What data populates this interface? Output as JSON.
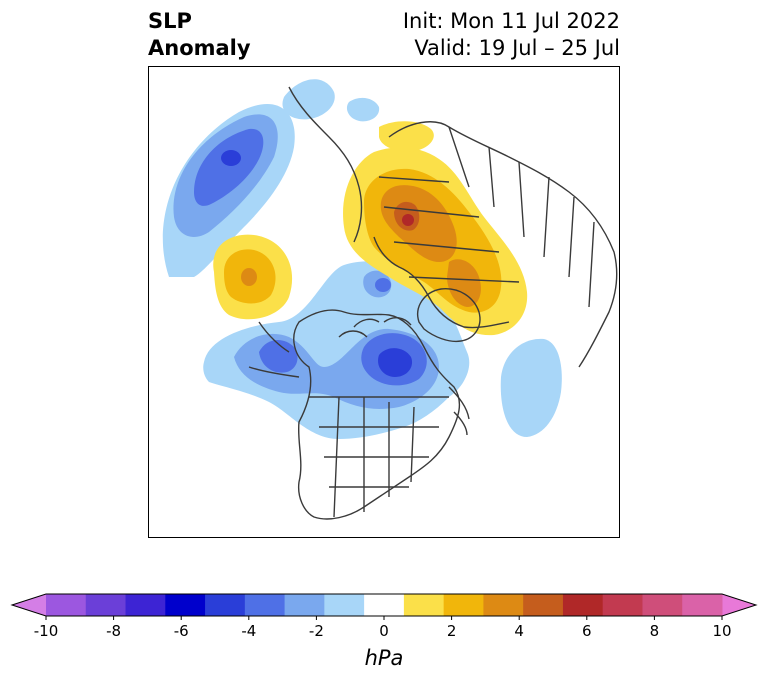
{
  "header": {
    "title_line1": "SLP",
    "title_line2": "Anomaly",
    "init": "Init: Mon 11 Jul 2022",
    "valid": "Valid: 19 Jul – 25 Jul"
  },
  "colorbar": {
    "unit": "hPa",
    "ticks": [
      "-10",
      "-8",
      "-6",
      "-4",
      "-2",
      "0",
      "2",
      "4",
      "6",
      "8",
      "10"
    ],
    "colors": [
      "#d47ee6",
      "#9c57e0",
      "#6b3fd8",
      "#3d24d4",
      "#0000cc",
      "#2a3ed8",
      "#4f70e6",
      "#7aa8ee",
      "#a8d6f8",
      "#ffffff",
      "#fbe049",
      "#f1b60b",
      "#dd8a14",
      "#c55d1d",
      "#b02828",
      "#c23a50",
      "#cf4e7a",
      "#da62a8",
      "#e879d8"
    ]
  },
  "map": {
    "projection": "north-polar-stereographic",
    "anomaly_centers": [
      {
        "id": "north-pacific-low",
        "sign": "negative",
        "peak_hpa": -5
      },
      {
        "id": "north-pacific-high",
        "sign": "positive",
        "peak_hpa": 3
      },
      {
        "id": "alaska-low",
        "sign": "negative",
        "peak_hpa": -3
      },
      {
        "id": "hudson-bay-low",
        "sign": "negative",
        "peak_hpa": -6
      },
      {
        "id": "central-arctic-low",
        "sign": "negative",
        "peak_hpa": -3
      },
      {
        "id": "north-atlantic-low",
        "sign": "negative",
        "peak_hpa": -2
      },
      {
        "id": "eurasia-high",
        "sign": "positive",
        "peak_hpa": 6
      },
      {
        "id": "europe-high",
        "sign": "positive",
        "peak_hpa": 2
      }
    ]
  }
}
